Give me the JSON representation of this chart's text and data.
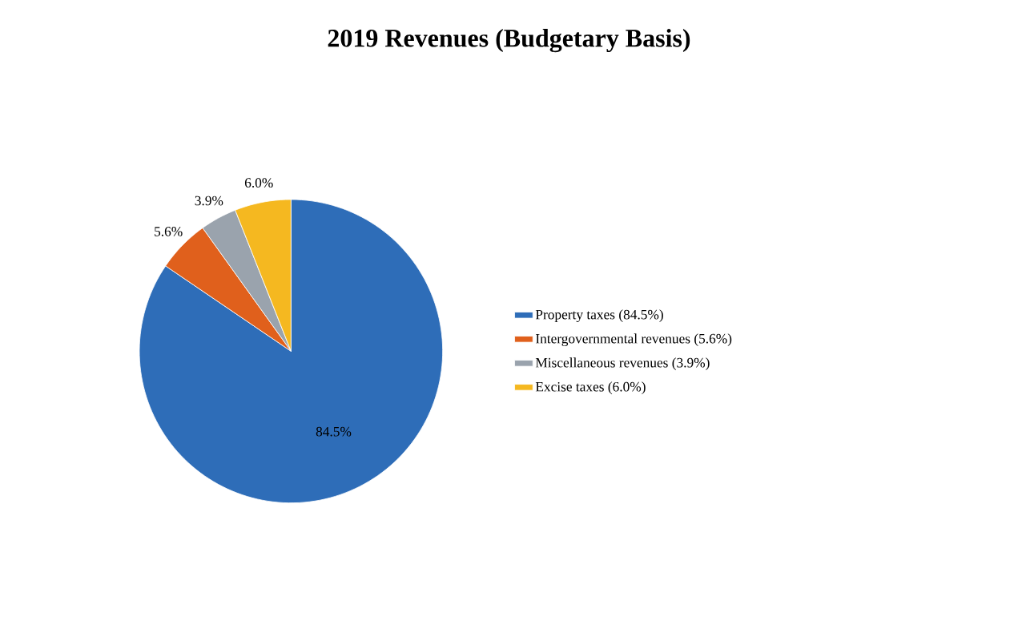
{
  "chart_data": {
    "type": "pie",
    "title": "2019 Revenues (Budgetary Basis)",
    "categories": [
      "Property taxes (84.5%)",
      "Intergovernmental revenues (5.6%)",
      "Miscellaneous revenues (3.9%)",
      "Excise taxes (6.0%)"
    ],
    "values": [
      84.5,
      5.6,
      3.9,
      6.0
    ],
    "value_labels": [
      "84.5%",
      "5.6%",
      "3.9%",
      "6.0%"
    ],
    "colors": [
      "#2e6db8",
      "#e0601c",
      "#9aa3ad",
      "#f5b820"
    ],
    "legend": "right"
  }
}
